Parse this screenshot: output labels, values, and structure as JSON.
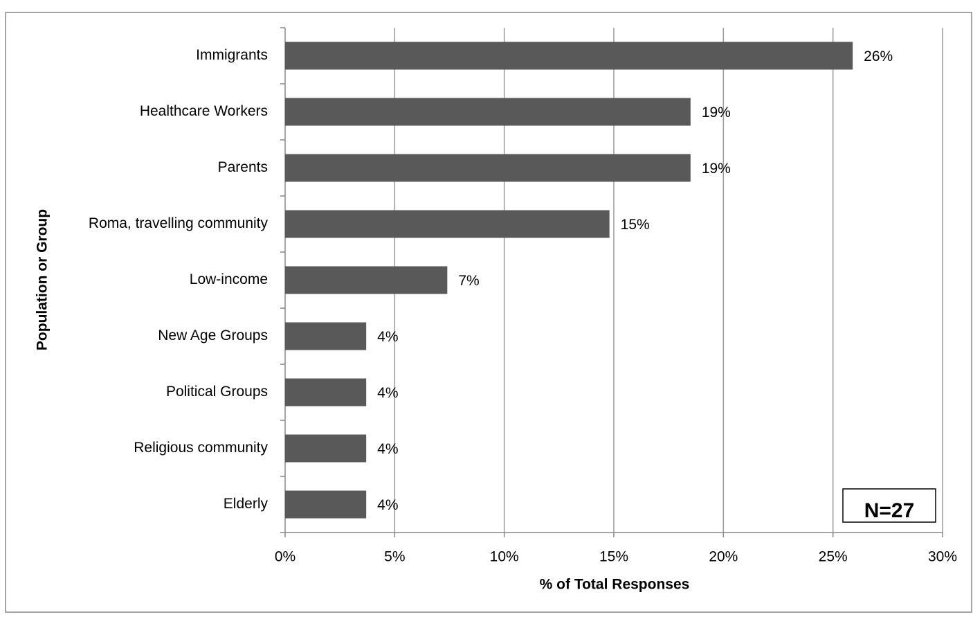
{
  "chart_data": {
    "type": "hbar",
    "x_label": "% of Total Responses",
    "y_label": "Population or Group",
    "categories": [
      "Immigrants",
      "Healthcare Workers",
      "Parents",
      "Roma, travelling community",
      "Low-income",
      "New Age Groups",
      "Political Groups",
      "Religious community",
      "Elderly"
    ],
    "values": [
      25.9,
      18.5,
      18.5,
      14.8,
      7.4,
      3.7,
      3.7,
      3.7,
      3.7
    ],
    "value_labels": [
      "26%",
      "19%",
      "19%",
      "15%",
      "7%",
      "4%",
      "4%",
      "4%",
      "4%"
    ],
    "color": "#595959",
    "xlim": [
      0,
      30
    ],
    "xticks": [
      {
        "value": 0,
        "label": "0%"
      },
      {
        "value": 5,
        "label": "5%"
      },
      {
        "value": 10,
        "label": "10%"
      },
      {
        "value": 15,
        "label": "15%"
      },
      {
        "value": 20,
        "label": "20%"
      },
      {
        "value": 25,
        "label": "25%"
      },
      {
        "value": 30,
        "label": "30%"
      }
    ],
    "grid": true,
    "annotation": "N=27"
  }
}
